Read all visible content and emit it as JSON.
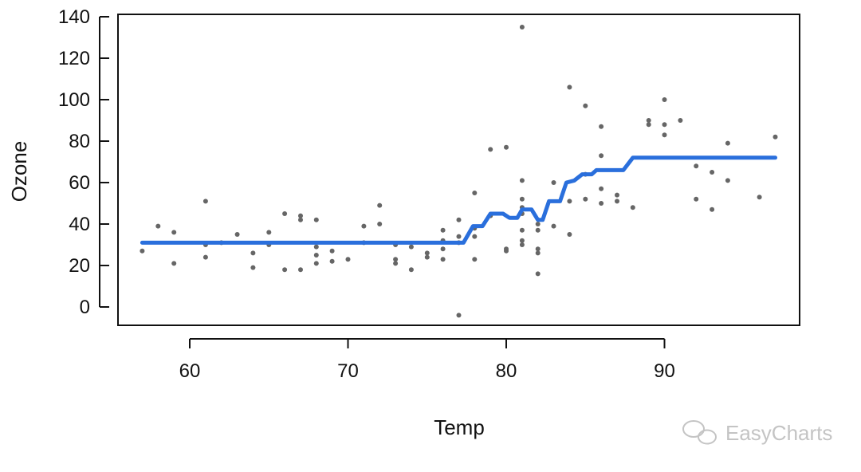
{
  "chart_data": {
    "type": "scatter",
    "title": "",
    "xlabel": "Temp",
    "ylabel": "Ozone",
    "xlim": [
      55,
      98
    ],
    "ylim": [
      -9,
      140
    ],
    "x_ticks": [
      60,
      70,
      80,
      90
    ],
    "y_ticks": [
      0,
      20,
      40,
      60,
      80,
      100,
      120,
      140
    ],
    "grid": false,
    "legend": "none",
    "points_color": "#666666",
    "line_color": "#2a6fdc",
    "points": [
      [
        57,
        27
      ],
      [
        58,
        39
      ],
      [
        59,
        36
      ],
      [
        59,
        21
      ],
      [
        61,
        51
      ],
      [
        61,
        30
      ],
      [
        61,
        24
      ],
      [
        62,
        31
      ],
      [
        63,
        35
      ],
      [
        64,
        26
      ],
      [
        64,
        19
      ],
      [
        65,
        36
      ],
      [
        65,
        30
      ],
      [
        66,
        45
      ],
      [
        66,
        18
      ],
      [
        67,
        44
      ],
      [
        67,
        42
      ],
      [
        67,
        18
      ],
      [
        68,
        42
      ],
      [
        68,
        29
      ],
      [
        68,
        25
      ],
      [
        68,
        21
      ],
      [
        69,
        27
      ],
      [
        69,
        22
      ],
      [
        70,
        23
      ],
      [
        71,
        39
      ],
      [
        71,
        31
      ],
      [
        72,
        49
      ],
      [
        72,
        40
      ],
      [
        73,
        30
      ],
      [
        73,
        23
      ],
      [
        73,
        21
      ],
      [
        74,
        29
      ],
      [
        74,
        18
      ],
      [
        75,
        26
      ],
      [
        75,
        24
      ],
      [
        76,
        37
      ],
      [
        76,
        32
      ],
      [
        76,
        28
      ],
      [
        76,
        23
      ],
      [
        77,
        42
      ],
      [
        77,
        34
      ],
      [
        77,
        31
      ],
      [
        77,
        -4
      ],
      [
        78,
        55
      ],
      [
        78,
        38
      ],
      [
        78,
        34
      ],
      [
        78,
        23
      ],
      [
        79,
        76
      ],
      [
        79,
        44
      ],
      [
        80,
        77
      ],
      [
        80,
        28
      ],
      [
        80,
        27
      ],
      [
        81,
        135
      ],
      [
        81,
        61
      ],
      [
        81,
        52
      ],
      [
        81,
        48
      ],
      [
        81,
        45
      ],
      [
        81,
        37
      ],
      [
        81,
        32
      ],
      [
        81,
        30
      ],
      [
        82,
        40
      ],
      [
        82,
        37
      ],
      [
        82,
        28
      ],
      [
        82,
        26
      ],
      [
        82,
        16
      ],
      [
        83,
        60
      ],
      [
        83,
        39
      ],
      [
        84,
        106
      ],
      [
        84,
        51
      ],
      [
        84,
        35
      ],
      [
        85,
        97
      ],
      [
        85,
        64
      ],
      [
        85,
        52
      ],
      [
        86,
        87
      ],
      [
        86,
        73
      ],
      [
        86,
        57
      ],
      [
        86,
        50
      ],
      [
        87,
        54
      ],
      [
        87,
        51
      ],
      [
        88,
        48
      ],
      [
        89,
        90
      ],
      [
        89,
        88
      ],
      [
        90,
        100
      ],
      [
        90,
        88
      ],
      [
        90,
        83
      ],
      [
        91,
        90
      ],
      [
        92,
        68
      ],
      [
        92,
        52
      ],
      [
        93,
        65
      ],
      [
        93,
        47
      ],
      [
        94,
        79
      ],
      [
        94,
        61
      ],
      [
        96,
        53
      ],
      [
        97,
        82
      ]
    ],
    "fit_line": [
      [
        57,
        31
      ],
      [
        77.3,
        31
      ],
      [
        77.9,
        39
      ],
      [
        78.5,
        39
      ],
      [
        79,
        45
      ],
      [
        79.8,
        45
      ],
      [
        80.2,
        43
      ],
      [
        80.7,
        43
      ],
      [
        81,
        47
      ],
      [
        81.6,
        47
      ],
      [
        82,
        42
      ],
      [
        82.3,
        42
      ],
      [
        82.7,
        51
      ],
      [
        83.4,
        51
      ],
      [
        83.8,
        60
      ],
      [
        84.3,
        61
      ],
      [
        84.8,
        64
      ],
      [
        85.4,
        64
      ],
      [
        85.7,
        66
      ],
      [
        87.4,
        66
      ],
      [
        88,
        72
      ],
      [
        97,
        72
      ]
    ]
  },
  "watermark": {
    "text": "EasyCharts",
    "icon": "wechat-icon"
  }
}
